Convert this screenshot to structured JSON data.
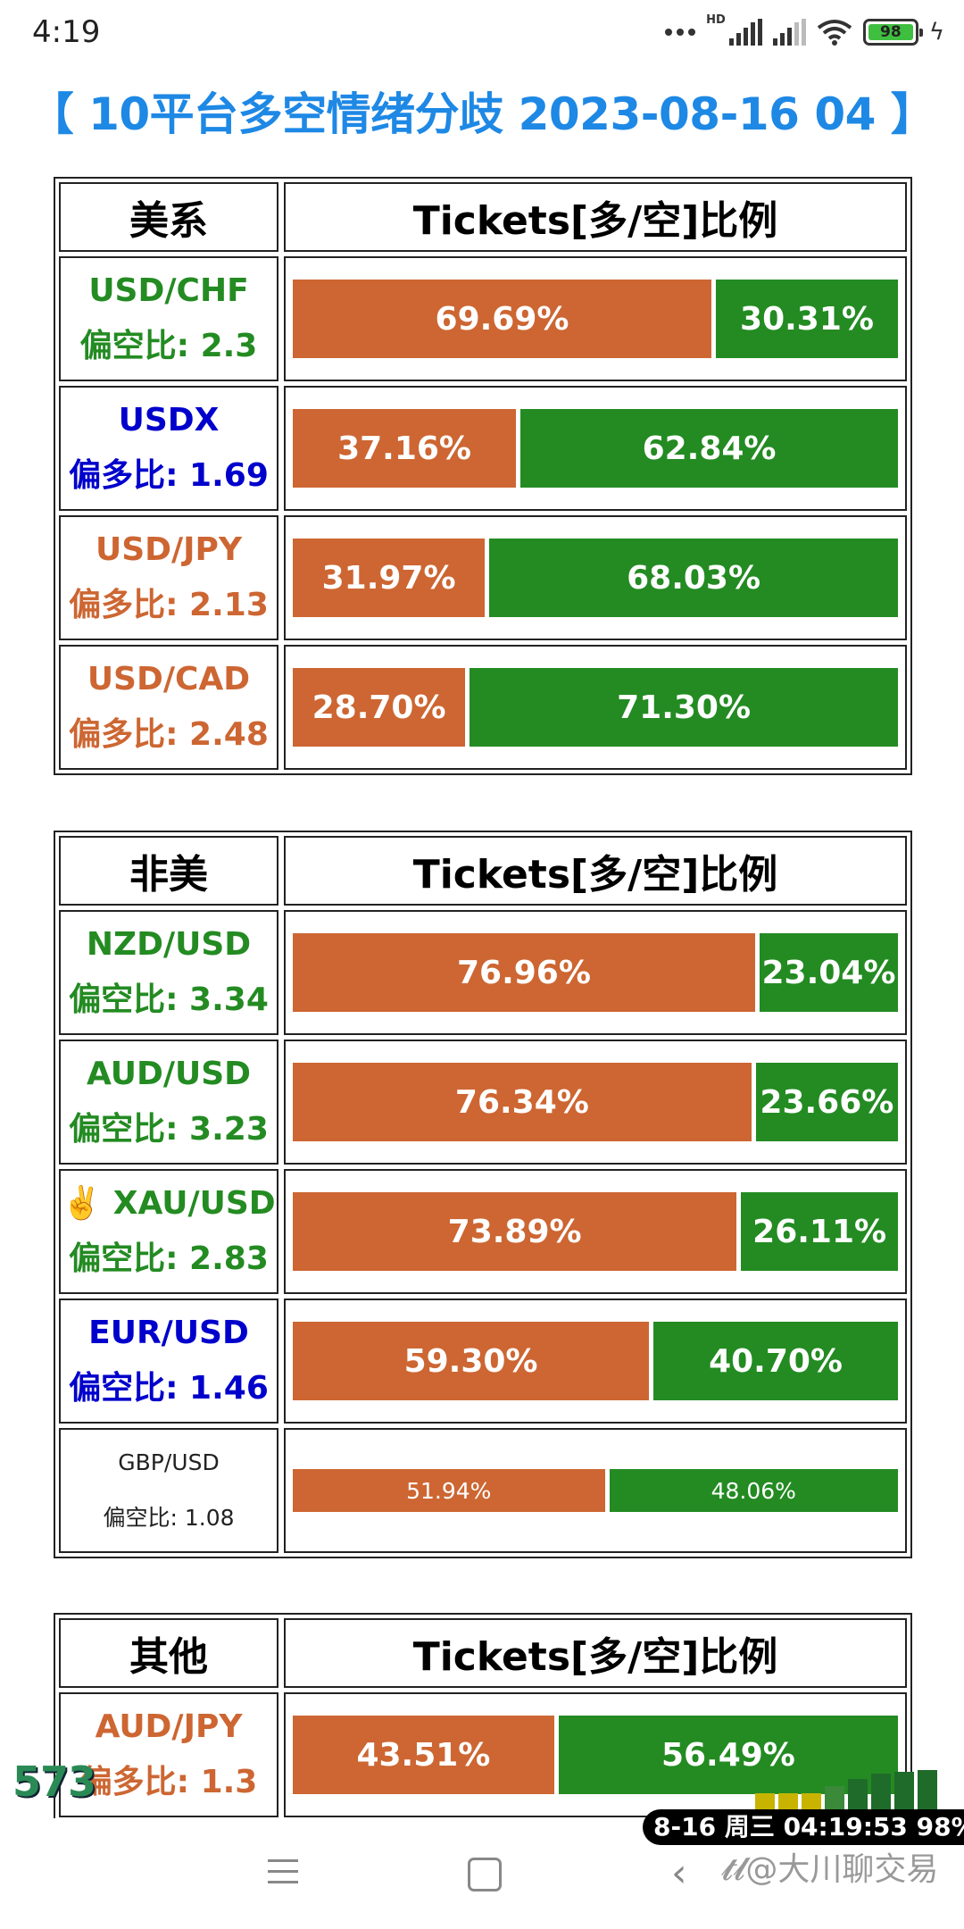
{
  "status_bar": {
    "time": "4:19",
    "hd_label": "HD",
    "battery_level": "98",
    "icons": [
      "dots-icon",
      "signal-icon",
      "signal-icon",
      "wifi-icon",
      "battery-icon",
      "charging-bolt-icon"
    ]
  },
  "title": "【 10平台多空情绪分歧 2023-08-16 04 】",
  "sections": [
    {
      "header_left": "美系",
      "header_right": "Tickets[多/空]比例",
      "rows": [
        {
          "pair": "USD/CHF",
          "ratio": "偏空比: 2.3",
          "color": "#238b22",
          "long": 69.69,
          "short": 30.31,
          "long_label": "69.69%",
          "short_label": "30.31%"
        },
        {
          "pair": "USDX",
          "ratio": "偏多比: 1.69",
          "color": "#0000cc",
          "long": 37.16,
          "short": 62.84,
          "long_label": "37.16%",
          "short_label": "62.84%"
        },
        {
          "pair": "USD/JPY",
          "ratio": "偏多比: 2.13",
          "color": "#cd6632",
          "long": 31.97,
          "short": 68.03,
          "long_label": "31.97%",
          "short_label": "68.03%"
        },
        {
          "pair": "USD/CAD",
          "ratio": "偏多比: 2.48",
          "color": "#cd6632",
          "long": 28.7,
          "short": 71.3,
          "long_label": "28.70%",
          "short_label": "71.30%"
        }
      ]
    },
    {
      "header_left": "非美",
      "header_right": "Tickets[多/空]比例",
      "rows": [
        {
          "pair": "NZD/USD",
          "ratio": "偏空比: 3.34",
          "color": "#238b22",
          "long": 76.96,
          "short": 23.04,
          "long_label": "76.96%",
          "short_label": "23.04%"
        },
        {
          "pair": "AUD/USD",
          "ratio": "偏空比: 3.23",
          "color": "#238b22",
          "long": 76.34,
          "short": 23.66,
          "long_label": "76.34%",
          "short_label": "23.66%"
        },
        {
          "pair": "✌️ XAU/USD",
          "ratio": "偏空比: 2.83",
          "color": "#238b22",
          "long": 73.89,
          "short": 26.11,
          "long_label": "73.89%",
          "short_label": "26.11%"
        },
        {
          "pair": "EUR/USD",
          "ratio": "偏空比: 1.46",
          "color": "#0000cc",
          "long": 59.3,
          "short": 40.7,
          "long_label": "59.30%",
          "short_label": "40.70%"
        },
        {
          "pair": "GBP/USD",
          "ratio": "偏空比: 1.08",
          "color": "#222222",
          "long": 51.94,
          "short": 48.06,
          "long_label": "51.94%",
          "short_label": "48.06%",
          "small": true
        }
      ]
    },
    {
      "header_left": "其他",
      "header_right": "Tickets[多/空]比例",
      "rows": [
        {
          "pair": "AUD/JPY",
          "ratio": "偏多比: 1.3",
          "color": "#cd6632",
          "long": 43.51,
          "short": 56.49,
          "long_label": "43.51%",
          "short_label": "56.49%"
        }
      ]
    }
  ],
  "overlay": {
    "counter": "573",
    "timestamp": "8-16 周三 04:19:53 98%",
    "watermark": "𝓽𝓵@大川聊交易"
  },
  "colors": {
    "long": "#cd6632",
    "short": "#238b22",
    "title": "#1e88e5"
  }
}
